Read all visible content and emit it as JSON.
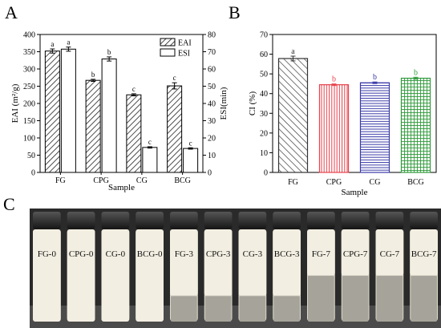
{
  "panels": {
    "A": "A",
    "B": "B",
    "C": "C"
  },
  "chart_data": [
    {
      "panel": "A",
      "type": "bar",
      "categories": [
        "FG",
        "CPG",
        "CG",
        "BCG"
      ],
      "xlabel": "Sample",
      "ylabel_left": "EAI (m²/g)",
      "ylabel_right": "ESI(min)",
      "ylim_left": [
        0,
        400
      ],
      "ylim_right": [
        0,
        80
      ],
      "yticks_left": [
        "0",
        "50",
        "100",
        "150",
        "200",
        "250",
        "300",
        "350",
        "400"
      ],
      "yticks_right": [
        "0",
        "10",
        "20",
        "30",
        "40",
        "50",
        "60",
        "70",
        "80"
      ],
      "legend_position": "top-right",
      "series": [
        {
          "name": "EAI",
          "axis": "left",
          "pattern": "hatch",
          "values": [
            352,
            267,
            225,
            251
          ],
          "errors": [
            6,
            3,
            3,
            9
          ],
          "labels": [
            "a",
            "b",
            "c",
            "c"
          ]
        },
        {
          "name": "ESI",
          "axis": "right",
          "pattern": "none",
          "values": [
            71.5,
            65.8,
            14.5,
            13.9
          ],
          "errors": [
            1.2,
            1.2,
            0.4,
            0.4
          ],
          "labels": [
            "a",
            "b",
            "c",
            "c"
          ]
        }
      ]
    },
    {
      "panel": "B",
      "type": "bar",
      "categories": [
        "FG",
        "CPG",
        "CG",
        "BCG"
      ],
      "xlabel": "Sample",
      "ylabel": "CI (%)",
      "ylim": [
        0,
        70
      ],
      "yticks": [
        "0",
        "10",
        "20",
        "30",
        "40",
        "50",
        "60",
        "70"
      ],
      "values": [
        57.8,
        44.5,
        45.5,
        47.8
      ],
      "errors": [
        1.2,
        0.4,
        0.4,
        0.5
      ],
      "labels": [
        "a",
        "b",
        "b",
        "b"
      ],
      "colors": [
        "#333333",
        "#e8404b",
        "#3a3aa8",
        "#2e9a3a"
      ],
      "patterns": [
        "diag",
        "vlines",
        "hlines",
        "grid"
      ]
    }
  ],
  "photo": {
    "vials": [
      {
        "label": "FG-0",
        "group": 0
      },
      {
        "label": "CPG-0",
        "group": 0
      },
      {
        "label": "CG-0",
        "group": 0
      },
      {
        "label": "BCG-0",
        "group": 0
      },
      {
        "label": "FG-3",
        "group": 1
      },
      {
        "label": "CPG-3",
        "group": 1
      },
      {
        "label": "CG-3",
        "group": 1
      },
      {
        "label": "BCG-3",
        "group": 1
      },
      {
        "label": "FG-7",
        "group": 2
      },
      {
        "label": "CPG-7",
        "group": 2
      },
      {
        "label": "CG-7",
        "group": 2
      },
      {
        "label": "BCG-7",
        "group": 2
      }
    ]
  },
  "colors": {
    "axis": "#000000",
    "photo_background": "#2a2a2a"
  }
}
